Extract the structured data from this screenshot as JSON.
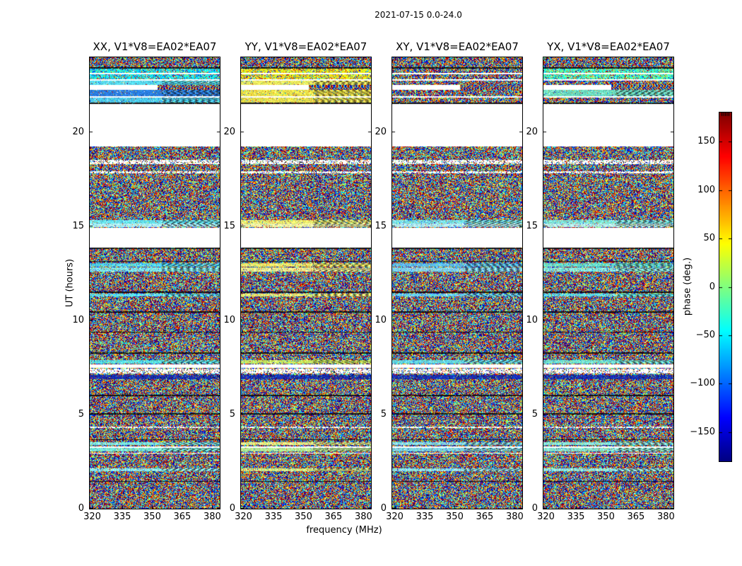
{
  "figure": {
    "background": "#ffffff",
    "text_color": "#000000"
  },
  "chart_data": {
    "type": "heatmap",
    "title": "2021-07-15 0.0-24.0",
    "xlabel": "frequency (MHz)",
    "ylabel": "UT (hours)",
    "x_range": [
      318.75,
      383.75
    ],
    "y_range": [
      0,
      24
    ],
    "x_ticks": [
      320,
      335,
      350,
      365,
      380
    ],
    "y_ticks": [
      0,
      5,
      10,
      15,
      20
    ],
    "grid": false,
    "panels": [
      {
        "id": "xx",
        "title": "XX, V1*V8=EA02*EA07",
        "tint": [
          0.28,
          0.45
        ]
      },
      {
        "id": "yy",
        "title": "YY, V1*V8=EA02*EA07",
        "tint": [
          0.56,
          0.7
        ]
      },
      {
        "id": "xy",
        "title": "XY, V1*V8=EA02*EA07",
        "tint": null
      },
      {
        "id": "yx",
        "title": "YX, V1*V8=EA02*EA07",
        "tint": [
          0.36,
          0.52
        ]
      }
    ],
    "colorbar": {
      "label": "phase (deg.)",
      "colormap": "jet",
      "range": [
        -180,
        180
      ],
      "tick_values": [
        150,
        100,
        50,
        0,
        -50,
        -100,
        -150
      ],
      "tick_labels": [
        "150",
        "100",
        "50",
        "0",
        "−50",
        "−100",
        "−150"
      ]
    },
    "no_data_gaps_ut": [
      [
        19.27,
        21.52
      ],
      [
        13.9,
        14.97
      ],
      [
        7.52,
        7.7
      ]
    ],
    "top_rows": [
      {
        "ut": [
          24.0,
          23.5
        ],
        "kind": "noise"
      },
      {
        "ut": [
          23.5,
          23.42
        ],
        "kind": "black"
      },
      {
        "ut": [
          23.42,
          23.18
        ],
        "kind": "tnoise"
      },
      {
        "ut": [
          23.18,
          23.1
        ],
        "kind": "gap"
      },
      {
        "ut": [
          23.1,
          22.85
        ],
        "kind": "tnoise"
      },
      {
        "ut": [
          22.85,
          22.78
        ],
        "kind": "gap"
      },
      {
        "ut": [
          22.78,
          22.55
        ],
        "kind": "band",
        "colors": [
          "#55d8f0",
          "#ede95c",
          null,
          null
        ]
      },
      {
        "ut": [
          22.55,
          22.28
        ],
        "kind": "halfgap"
      },
      {
        "ut": [
          22.28,
          21.96
        ],
        "kind": "band",
        "colors": [
          "#2b7de0",
          "#f0e34a",
          null,
          "#6cdcc0"
        ]
      },
      {
        "ut": [
          21.96,
          21.86
        ],
        "kind": "gap"
      },
      {
        "ut": [
          21.86,
          21.6
        ],
        "kind": "band",
        "colors": [
          "#4cc8ea",
          "#e8e050",
          null,
          null
        ]
      },
      {
        "ut": [
          21.6,
          21.52
        ],
        "kind": "black"
      }
    ],
    "features": [
      {
        "ut": [
          21.52,
          19.27
        ],
        "kind": "gap"
      },
      {
        "ut": [
          18.55,
          18.32
        ],
        "kind": "sparse"
      },
      {
        "ut": [
          17.96,
          17.84
        ],
        "kind": "sparse"
      },
      {
        "ut": [
          15.38,
          15.18
        ],
        "kind": "band",
        "colors": [
          "#66e4f2",
          "#e8ec6e",
          "#74dce8",
          "#7ee4d8"
        ]
      },
      {
        "ut": [
          15.18,
          15.0
        ],
        "kind": "band",
        "colors": [
          "#aef2f8",
          "#f2f2a0",
          "#b0e8f0",
          "#b4eee8"
        ]
      },
      {
        "ut": [
          14.97,
          13.9
        ],
        "kind": "gap"
      },
      {
        "ut": [
          13.9,
          13.83
        ],
        "kind": "black"
      },
      {
        "ut": [
          13.2,
          13.14
        ],
        "kind": "black"
      },
      {
        "ut": [
          13.08,
          12.88
        ],
        "kind": "band",
        "colors": [
          "#52d6f2",
          "#eee668",
          "#5cbcec",
          "#66decc"
        ]
      },
      {
        "ut": [
          12.84,
          12.62
        ],
        "kind": "band",
        "colors": [
          "#7ce8f0",
          "#f0ee8c",
          "#7ed0f0",
          "#84e6dc"
        ]
      },
      {
        "ut": [
          11.55,
          11.49
        ],
        "kind": "black"
      },
      {
        "ut": [
          11.46,
          11.3
        ],
        "kind": "band",
        "colors": [
          "#5cdcf2",
          "#eaea74",
          "#64ccf2",
          "#5edce4"
        ]
      },
      {
        "ut": [
          10.5,
          10.44
        ],
        "kind": "black"
      },
      {
        "ut": [
          9.44,
          9.38
        ],
        "kind": "black"
      },
      {
        "ut": [
          8.32,
          8.26
        ],
        "kind": "black"
      },
      {
        "ut": [
          7.92,
          7.73
        ],
        "kind": "band",
        "colors": [
          "#5ae2e6",
          "#c8e860",
          "#64d4e2",
          "#72e2d2"
        ]
      },
      {
        "ut": [
          7.7,
          7.52
        ],
        "kind": "gap"
      },
      {
        "ut": [
          7.48,
          7.22
        ],
        "kind": "sparse"
      },
      {
        "ut": [
          7.14,
          6.92
        ],
        "kind": "navy"
      },
      {
        "ut": [
          6.06,
          6.0
        ],
        "kind": "black"
      },
      {
        "ut": [
          5.08,
          5.02
        ],
        "kind": "black"
      },
      {
        "ut": [
          4.4,
          4.3
        ],
        "kind": "sparse"
      },
      {
        "ut": [
          3.7,
          3.65
        ],
        "kind": "black"
      },
      {
        "ut": [
          3.56,
          3.42
        ],
        "kind": "band",
        "colors": [
          "#7ee8e2",
          "#eaf084",
          "#82dae8",
          "#8ae8da"
        ]
      },
      {
        "ut": [
          3.32,
          3.27
        ],
        "kind": "gap"
      },
      {
        "ut": [
          3.24,
          3.06
        ],
        "kind": "band",
        "colors": [
          "#72e2d2",
          "#b2e892",
          "#7ad2e2",
          "#82e2d2"
        ]
      },
      {
        "ut": [
          3.0,
          2.95
        ],
        "kind": "gap"
      },
      {
        "ut": [
          2.18,
          2.02
        ],
        "kind": "band",
        "colors": [
          "#8aeaea",
          "#d2ea82",
          "#8cdeea",
          "#92eae2"
        ]
      },
      {
        "ut": [
          1.5,
          1.45
        ],
        "kind": "black"
      }
    ]
  }
}
